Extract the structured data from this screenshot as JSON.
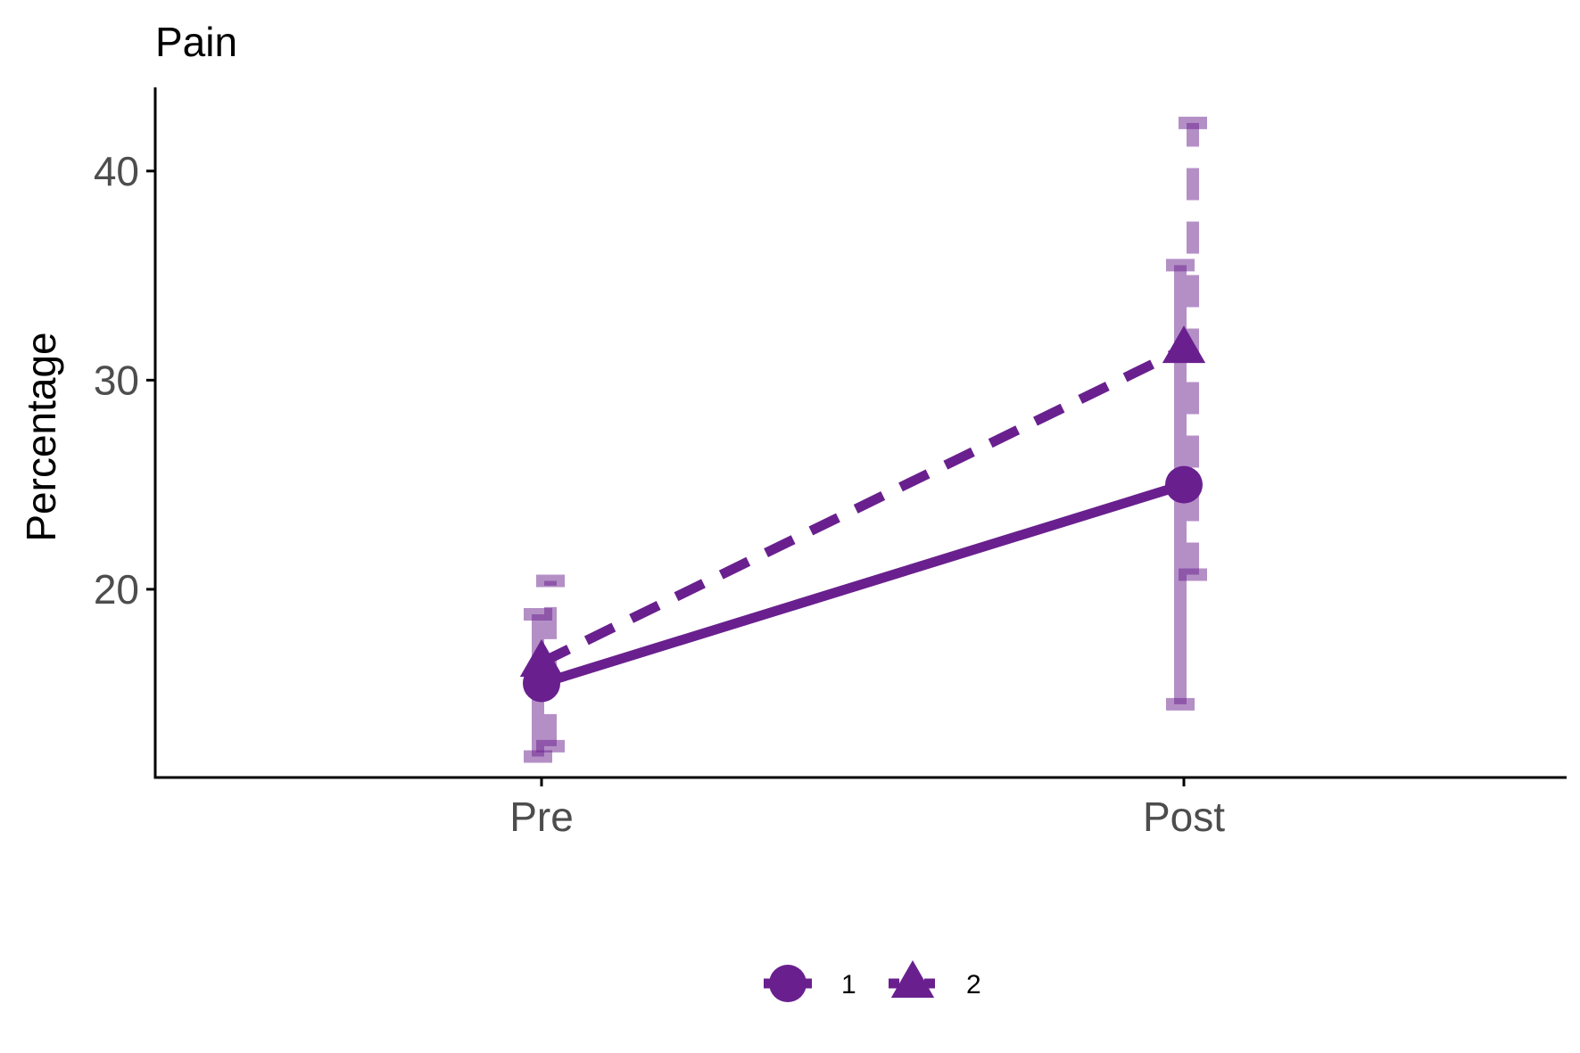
{
  "chart_data": {
    "type": "line",
    "title": "Pain",
    "xlabel": "",
    "ylabel": "Percentage",
    "categories": [
      "Pre",
      "Post"
    ],
    "ylim": [
      11.0,
      44.0
    ],
    "yticks": [
      20,
      30,
      40
    ],
    "grid": false,
    "legend_position": "bottom",
    "color": "#69208e",
    "series": [
      {
        "name": "1",
        "marker": "circle",
        "linestyle": "solid",
        "values": [
          15.5,
          25.0
        ],
        "error_low": [
          12.0,
          14.5
        ],
        "error_high": [
          18.8,
          35.5
        ]
      },
      {
        "name": "2",
        "marker": "triangle",
        "linestyle": "dashed",
        "values": [
          16.5,
          31.5
        ],
        "error_low": [
          12.5,
          20.7
        ],
        "error_high": [
          20.4,
          42.3
        ]
      }
    ]
  }
}
